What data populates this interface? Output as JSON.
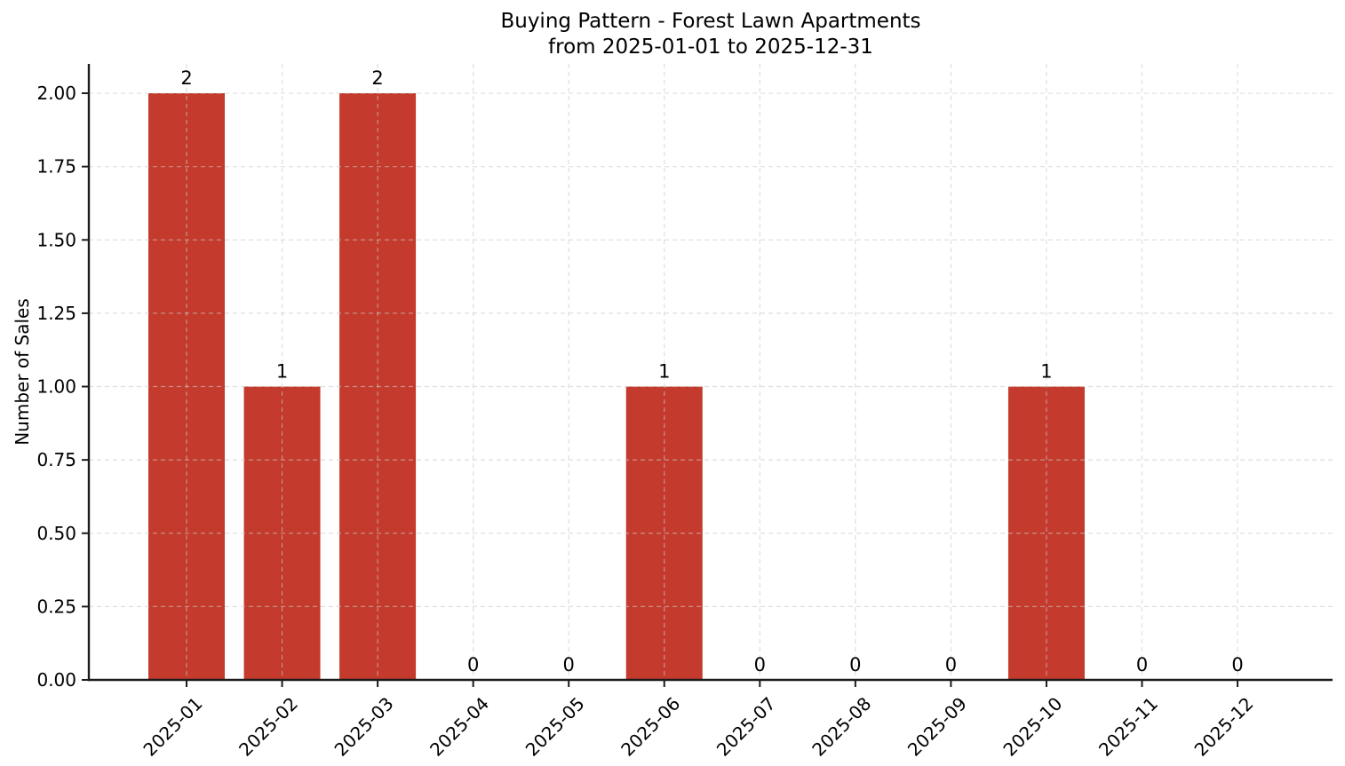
{
  "chart_data": {
    "type": "bar",
    "title": "Buying Pattern - Forest Lawn Apartments",
    "subtitle": "from 2025-01-01 to 2025-12-31",
    "xlabel": "",
    "ylabel": "Number of Sales",
    "categories": [
      "2025-01",
      "2025-02",
      "2025-03",
      "2025-04",
      "2025-05",
      "2025-06",
      "2025-07",
      "2025-08",
      "2025-09",
      "2025-10",
      "2025-11",
      "2025-12"
    ],
    "values": [
      2,
      1,
      2,
      0,
      0,
      1,
      0,
      0,
      0,
      1,
      0,
      0
    ],
    "bar_value_labels": [
      "2",
      "1",
      "2",
      "0",
      "0",
      "1",
      "0",
      "0",
      "0",
      "1",
      "0",
      "0"
    ],
    "ylim": [
      0,
      2.1
    ],
    "yticks": [
      0,
      0.25,
      0.5,
      0.75,
      1,
      1.25,
      1.5,
      1.75,
      2
    ],
    "ytick_labels": [
      "0.00",
      "0.25",
      "0.50",
      "0.75",
      "1.00",
      "1.25",
      "1.50",
      "1.75",
      "2.00"
    ],
    "xtick_rotation_deg": 45,
    "grid": true,
    "grid_style": "dashed",
    "legend": null,
    "colors": {
      "bar": "#c43a2c",
      "grid": "#c9c9c9",
      "axis": "#1c1c1c",
      "text": "#000000",
      "background": "#ffffff"
    }
  }
}
